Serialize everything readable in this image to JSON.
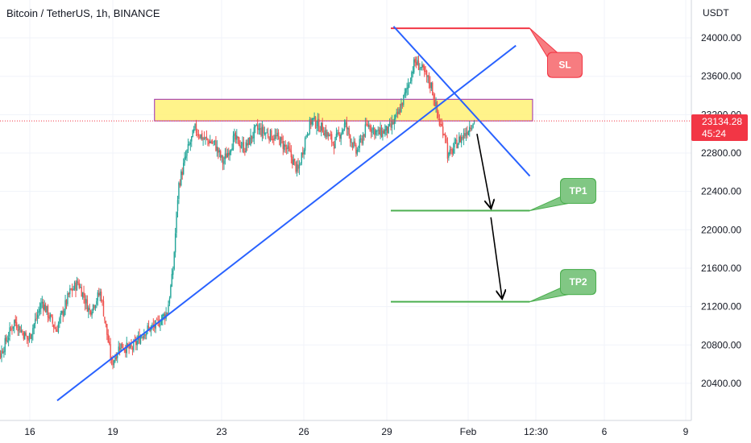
{
  "header": {
    "title": "Bitcoin / TetherUS, 1h, BINANCE"
  },
  "price_axis": {
    "unit_label": "USDT",
    "current_price": "23134.28",
    "countdown": "45:24"
  },
  "colors": {
    "candle_up": "#26a69a",
    "candle_down": "#ef5350",
    "trendline": "#2962ff",
    "stop_loss": "#f23645",
    "take_profit": "#4caf50",
    "resistance_zone": "#fff176",
    "resistance_border": "#9c27b0",
    "current_price_line": "#f23645"
  },
  "chart_data": {
    "type": "candlestick",
    "symbol": "Bitcoin / TetherUS",
    "interval": "1h",
    "exchange": "BINANCE",
    "y_axis": {
      "unit": "USDT",
      "range": [
        20100,
        24350
      ],
      "ticks": [
        "20400.00",
        "20800.00",
        "21200.00",
        "21600.00",
        "22000.00",
        "22400.00",
        "22800.00",
        "23200.00",
        "23600.00",
        "24000.00"
      ]
    },
    "x_axis": {
      "ticks": [
        "16",
        "19",
        "23",
        "26",
        "29",
        "Feb",
        "12:30",
        "6",
        "9"
      ]
    },
    "grid": true,
    "current_price": 23134.28,
    "price_path": [
      [
        14.5,
        20950
      ],
      [
        15.0,
        20700
      ],
      [
        15.5,
        21050
      ],
      [
        16.0,
        20850
      ],
      [
        16.5,
        21250
      ],
      [
        17.0,
        20950
      ],
      [
        17.5,
        21350
      ],
      [
        17.8,
        21450
      ],
      [
        18.2,
        21150
      ],
      [
        18.6,
        21350
      ],
      [
        19.0,
        20600
      ],
      [
        19.3,
        20800
      ],
      [
        19.7,
        20750
      ],
      [
        20.2,
        20950
      ],
      [
        20.6,
        21000
      ],
      [
        21.0,
        21150
      ],
      [
        21.2,
        21550
      ],
      [
        21.4,
        22450
      ],
      [
        21.7,
        22800
      ],
      [
        22.0,
        23050
      ],
      [
        22.3,
        22950
      ],
      [
        22.7,
        22900
      ],
      [
        23.0,
        22700
      ],
      [
        23.4,
        22950
      ],
      [
        23.8,
        22850
      ],
      [
        24.2,
        23050
      ],
      [
        24.6,
        23000
      ],
      [
        25.0,
        22950
      ],
      [
        25.4,
        22800
      ],
      [
        25.7,
        22600
      ],
      [
        26.0,
        23000
      ],
      [
        26.2,
        23150
      ],
      [
        26.6,
        23050
      ],
      [
        27.0,
        22900
      ],
      [
        27.4,
        23100
      ],
      [
        27.8,
        22800
      ],
      [
        28.2,
        23100
      ],
      [
        28.6,
        23000
      ],
      [
        29.0,
        23050
      ],
      [
        29.3,
        23200
      ],
      [
        29.6,
        23450
      ],
      [
        29.9,
        23750
      ],
      [
        30.1,
        23700
      ],
      [
        30.5,
        23500
      ],
      [
        30.8,
        23100
      ],
      [
        31.0,
        23000
      ],
      [
        31.1,
        22750
      ],
      [
        31.4,
        22900
      ],
      [
        31.7,
        23000
      ],
      [
        32.0,
        23134.28
      ]
    ],
    "annotations": [
      {
        "label": "SL",
        "type": "horizontal",
        "price": 24100,
        "x_range": [
          29.0,
          34.0
        ],
        "color": "#f23645"
      },
      {
        "label": "TP1",
        "type": "horizontal",
        "price": 22200,
        "x_range": [
          29.0,
          34.0
        ],
        "color": "#4caf50"
      },
      {
        "label": "TP2",
        "type": "horizontal",
        "price": 21250,
        "x_range": [
          29.0,
          34.0
        ],
        "color": "#4caf50"
      },
      {
        "label": "",
        "type": "zone",
        "price_range": [
          23135,
          23360
        ],
        "x_range": [
          20.5,
          34.1
        ],
        "color": "#fff176"
      },
      {
        "label": "",
        "type": "trendline",
        "points": [
          [
            17.0,
            20220
          ],
          [
            33.5,
            23920
          ]
        ],
        "color": "#2962ff"
      },
      {
        "label": "",
        "type": "trendline",
        "points": [
          [
            29.1,
            24120
          ],
          [
            34.0,
            22560
          ]
        ],
        "color": "#2962ff"
      },
      {
        "label": "",
        "type": "arrow",
        "points": [
          [
            32.1,
            23000
          ],
          [
            32.6,
            22230
          ]
        ],
        "color": "#000000"
      },
      {
        "label": "",
        "type": "arrow",
        "points": [
          [
            32.6,
            22130
          ],
          [
            33.0,
            21290
          ]
        ],
        "color": "#000000"
      }
    ]
  }
}
